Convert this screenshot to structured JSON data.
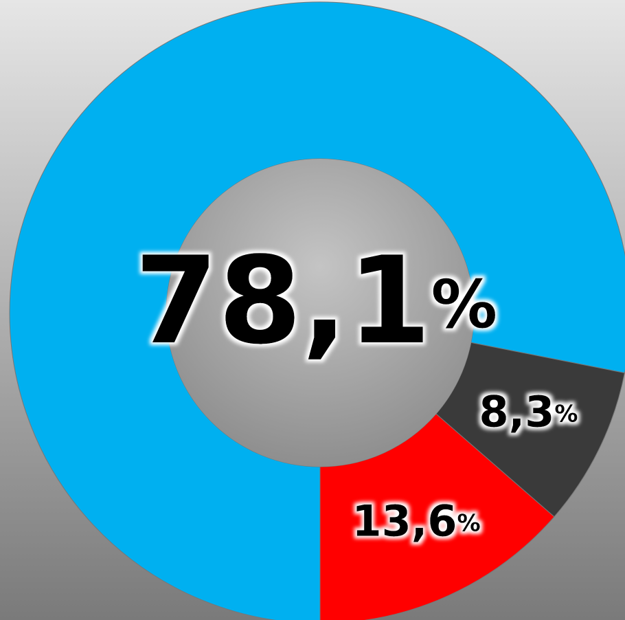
{
  "chart_data": {
    "type": "pie",
    "values": [
      78.1,
      8.3,
      13.6
    ],
    "value_labels": [
      "78,1%",
      "8,3%",
      "13,6%"
    ],
    "colors": [
      "#00b0f0",
      "#3a3a3a",
      "#ff0000"
    ]
  }
}
